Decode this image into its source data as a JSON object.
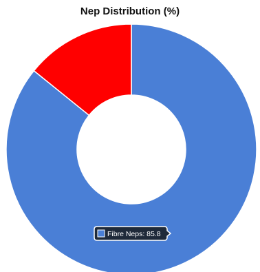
{
  "chart_data": {
    "type": "pie",
    "donut": true,
    "title": "Nep Distribution (%)",
    "slices": [
      {
        "label": "Fibre Neps",
        "value": 85.8,
        "color": "#4A7FD6"
      },
      {
        "label": "",
        "value": 14.2,
        "color": "#FF0000"
      }
    ],
    "tooltip": {
      "label": "Fibre Neps",
      "value": "85.8",
      "text": "Fibre Neps: 85.8"
    },
    "legend": "none"
  }
}
